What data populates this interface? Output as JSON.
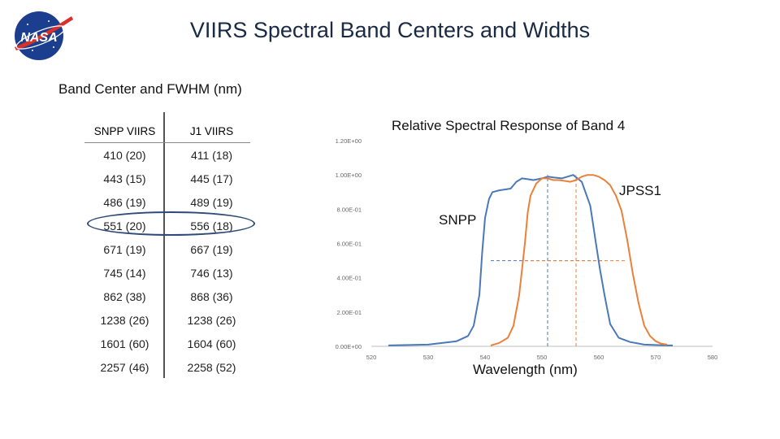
{
  "header": {
    "title": "VIIRS Spectral Band Centers and Widths",
    "logo_text": "NASA"
  },
  "table": {
    "caption": "Band Center and FWHM (nm)",
    "headers": [
      "SNPP VIIRS",
      "J1 VIIRS"
    ],
    "rows": [
      [
        "410 (20)",
        "411 (18)"
      ],
      [
        "443 (15)",
        "445 (17)"
      ],
      [
        "486 (19)",
        "489 (19)"
      ],
      [
        "551 (20)",
        "556 (18)"
      ],
      [
        "671 (19)",
        "667 (19)"
      ],
      [
        "745 (14)",
        "746 (13)"
      ],
      [
        "862 (38)",
        "868 (36)"
      ],
      [
        "1238 (26)",
        "1238 (26)"
      ],
      [
        "1601 (60)",
        "1604 (60)"
      ],
      [
        "2257 (46)",
        "2258 (52)"
      ]
    ],
    "highlighted_row": 3
  },
  "chart_data": {
    "type": "line",
    "title": "Relative Spectral Response of Band 4",
    "xlabel": "Wavelength (nm)",
    "ylabel": "",
    "xlim": [
      520,
      580
    ],
    "ylim": [
      0,
      1.2
    ],
    "x_ticks": [
      "520",
      "530",
      "540",
      "550",
      "560",
      "570",
      "580"
    ],
    "y_ticks": [
      "0.00E+00",
      "2.00E-01",
      "4.00E-01",
      "6.00E-01",
      "8.00E-01",
      "1.00E+00",
      "1.20E+00"
    ],
    "grid": false,
    "series": [
      {
        "name": "SNPP",
        "color": "#4a78b8",
        "x": [
          523,
          530,
          535,
          537,
          538,
          539,
          539.5,
          540,
          540.7,
          541.3,
          542.5,
          544.5,
          545.5,
          546.5,
          547.5,
          548.5,
          550,
          551,
          552,
          553.5,
          554.5,
          555.5,
          557,
          558.5,
          559.5,
          560.2,
          561,
          562,
          563.5,
          565.5,
          568,
          572,
          573
        ],
        "values": [
          0.005,
          0.01,
          0.03,
          0.06,
          0.12,
          0.3,
          0.55,
          0.75,
          0.86,
          0.9,
          0.91,
          0.92,
          0.96,
          0.98,
          0.975,
          0.97,
          0.98,
          0.99,
          0.985,
          0.98,
          0.99,
          1.0,
          0.96,
          0.82,
          0.6,
          0.45,
          0.3,
          0.13,
          0.05,
          0.025,
          0.01,
          0.005,
          0.005
        ]
      },
      {
        "name": "JPSS1",
        "color": "#e8823a",
        "x": [
          541,
          542.5,
          544,
          545,
          546,
          547,
          547.5,
          548,
          549,
          550,
          551,
          552,
          553,
          554,
          555,
          556,
          557,
          558,
          559,
          560,
          561,
          562,
          563,
          564,
          565,
          566,
          567,
          568,
          569,
          570,
          571,
          572
        ],
        "values": [
          0.005,
          0.02,
          0.05,
          0.12,
          0.3,
          0.6,
          0.78,
          0.88,
          0.95,
          0.98,
          0.98,
          0.97,
          0.97,
          0.965,
          0.96,
          0.97,
          0.99,
          1.0,
          1.0,
          0.99,
          0.97,
          0.94,
          0.88,
          0.79,
          0.62,
          0.42,
          0.25,
          0.12,
          0.06,
          0.03,
          0.015,
          0.01
        ]
      }
    ],
    "markers": [
      {
        "series": "SNPP",
        "center": 551,
        "half_max": 0.5,
        "fwhm_range": [
          541,
          561
        ]
      },
      {
        "series": "JPSS1",
        "center": 556,
        "half_max": 0.5,
        "fwhm_range": [
          547,
          565
        ]
      }
    ],
    "labels": {
      "jpss": "JPSS1",
      "snpp": "SNPP"
    }
  }
}
